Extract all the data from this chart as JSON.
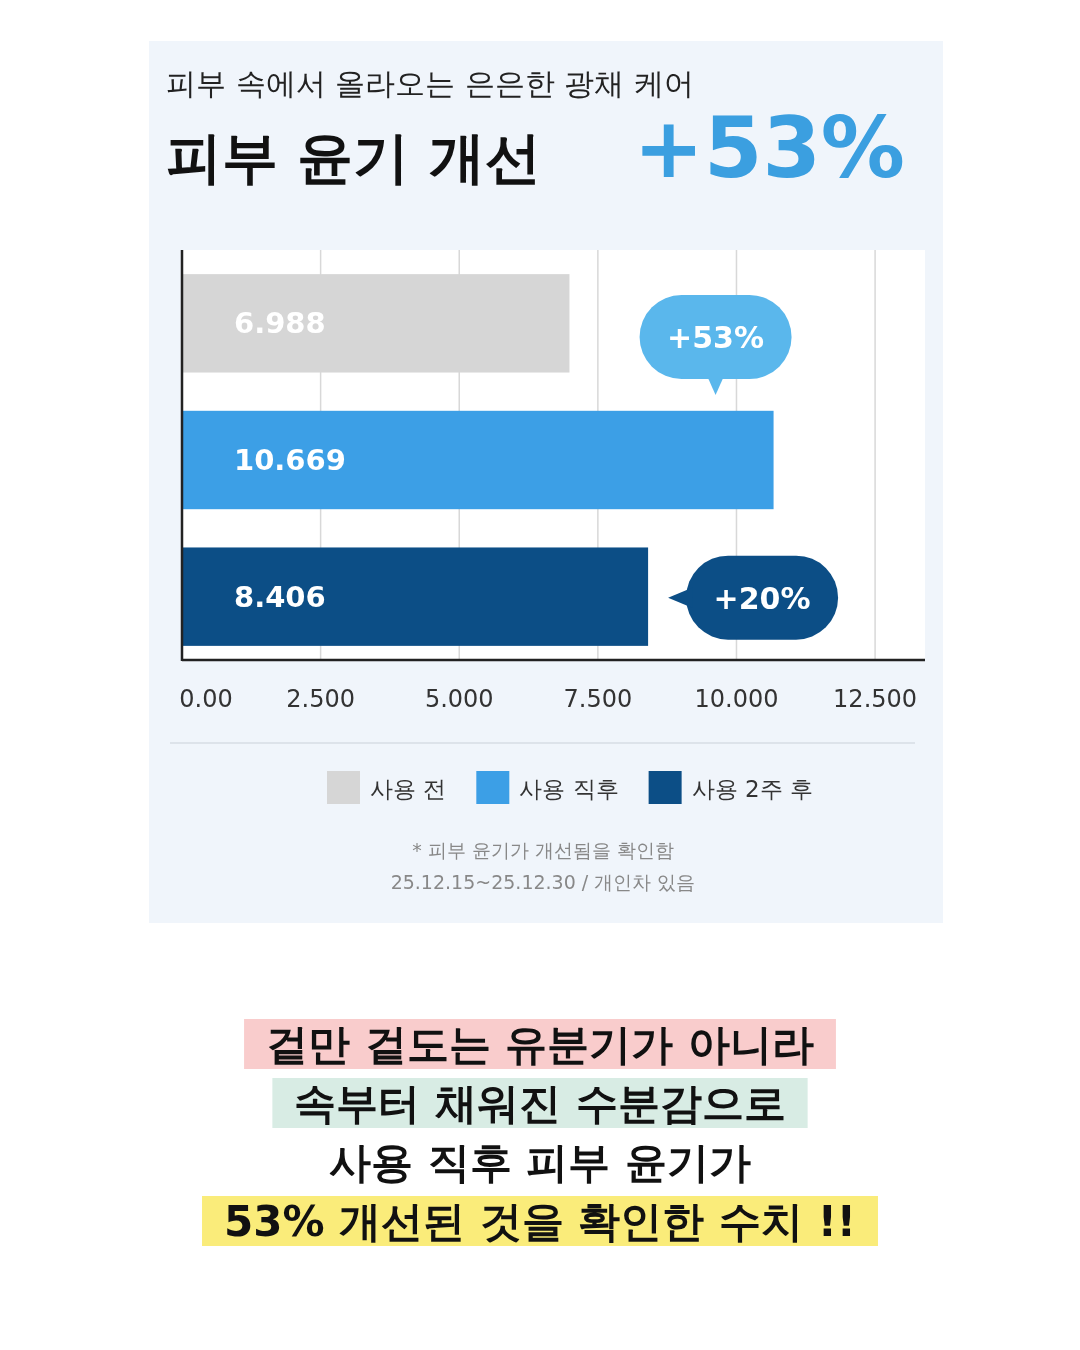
{
  "chart_data": {
    "type": "bar",
    "orientation": "horizontal",
    "title": "피부 윤기 개선",
    "subtitle": "피부 속에서 올라오는 은은한 광채 케어",
    "categories": [
      null,
      null,
      null
    ],
    "series": [
      {
        "name": "사용 전",
        "color": "#d6d6d6",
        "values": [
          6.988,
          null,
          null
        ]
      },
      {
        "name": "사용 직후",
        "color": "#3c9fe6",
        "values": [
          null,
          10.669,
          null
        ]
      },
      {
        "name": "사용 2주 후",
        "color": "#0c4e86",
        "values": [
          null,
          null,
          8.406
        ]
      }
    ],
    "xlim": [
      0,
      13.4
    ],
    "xticks": [
      {
        "value": 0,
        "label": "0.00"
      },
      {
        "value": 2.5,
        "label": "2.500"
      },
      {
        "value": 5,
        "label": "5.000"
      },
      {
        "value": 7.5,
        "label": "7.500"
      },
      {
        "value": 10,
        "label": "10.000"
      },
      {
        "value": 12.5,
        "label": "12.500"
      }
    ],
    "grid": "x",
    "legend": "bottom",
    "data_labels": true,
    "annotations": [
      "+53%",
      "+53%",
      "+20%",
      "* 피부 윤기가 개선됨을 확인함",
      "25.12.15~25.12.30 / 개인차 있음",
      "겉만 겉도는 유분기가 아니라",
      "속부터 채워진 수분감으로",
      "사용 직후 피부 윤기가",
      "53% 개선된 것을 확인한 수치 !!"
    ]
  }
}
